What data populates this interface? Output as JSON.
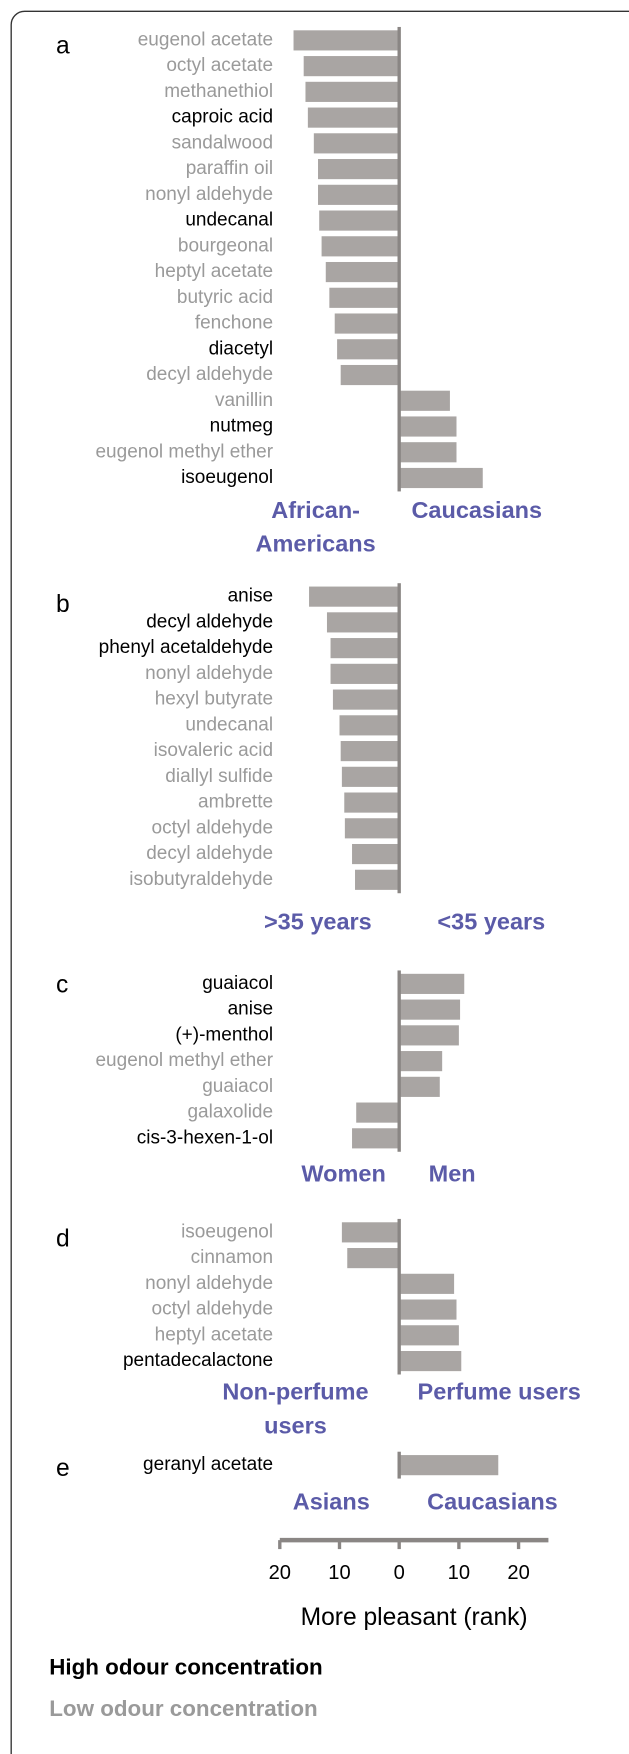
{
  "chart_data": {
    "type": "bar",
    "orientation": "horizontal",
    "xlabel": "More pleasant (rank)",
    "xlim": [
      -20,
      25
    ],
    "xticks": [
      {
        "value": -20,
        "label": "20"
      },
      {
        "value": -10,
        "label": "10"
      },
      0,
      10,
      20
    ],
    "bar_color": "#a9a5a3",
    "legend": [
      {
        "name": "High odour concentration",
        "color": "#000000"
      },
      {
        "name": "Low odour concentration",
        "color": "#9a9a9a"
      }
    ],
    "panels": [
      {
        "letter": "a",
        "left_label": [
          "African-",
          "Americans"
        ],
        "right_label": [
          "Caucasians"
        ],
        "categories": [
          "eugenol acetate",
          "octyl acetate",
          "methanethiol",
          "caproic acid",
          "sandalwood",
          "paraffin oil",
          "nonyl aldehyde",
          "undecanal",
          "bourgeonal",
          "heptyl acetate",
          "butyric acid",
          "fenchone",
          "diacetyl",
          "decyl aldehyde",
          "vanillin",
          "nutmeg",
          "eugenol methyl ether",
          "isoeugenol"
        ],
        "values": [
          -17.7,
          -16,
          -15.7,
          -15.3,
          -14.3,
          -13.6,
          -13.6,
          -13.4,
          -13,
          -12.3,
          -11.7,
          -10.8,
          -10.4,
          -9.8,
          8.5,
          9.6,
          9.6,
          14
        ],
        "label_colors": [
          "#9a9a9a",
          "#9a9a9a",
          "#9a9a9a",
          "#000000",
          "#9a9a9a",
          "#9a9a9a",
          "#9a9a9a",
          "#000000",
          "#9a9a9a",
          "#9a9a9a",
          "#9a9a9a",
          "#9a9a9a",
          "#000000",
          "#9a9a9a",
          "#9a9a9a",
          "#000000",
          "#9a9a9a",
          "#000000"
        ]
      },
      {
        "letter": "b",
        "left_label": [
          ">35 years"
        ],
        "right_label": [
          "<35 years"
        ],
        "categories": [
          "anise",
          "decyl aldehyde",
          "phenyl acetaldehyde",
          "nonyl aldehyde",
          "hexyl butyrate",
          "undecanal",
          "isovaleric acid",
          "diallyl sulfide",
          "ambrette",
          "octyl aldehyde",
          "decyl aldehyde",
          "isobutyraldehyde"
        ],
        "values": [
          -15.1,
          -12.1,
          -11.5,
          -11.5,
          -11.1,
          -10,
          -9.8,
          -9.6,
          -9.2,
          -9.1,
          -7.9,
          -7.4
        ],
        "label_colors": [
          "#000000",
          "#000000",
          "#000000",
          "#9a9a9a",
          "#9a9a9a",
          "#9a9a9a",
          "#9a9a9a",
          "#9a9a9a",
          "#9a9a9a",
          "#9a9a9a",
          "#9a9a9a",
          "#9a9a9a"
        ]
      },
      {
        "letter": "c",
        "left_label": [
          "Women"
        ],
        "right_label": [
          "Men"
        ],
        "categories": [
          "guaiacol",
          "anise",
          "(+)-menthol",
          "eugenol methyl ether",
          "guaiacol",
          "galaxolide",
          "cis-3-hexen-1-ol"
        ],
        "values": [
          10.9,
          10.2,
          10,
          7.2,
          6.8,
          -7.2,
          -7.9
        ],
        "label_colors": [
          "#000000",
          "#000000",
          "#000000",
          "#9a9a9a",
          "#9a9a9a",
          "#9a9a9a",
          "#000000"
        ]
      },
      {
        "letter": "d",
        "left_label": [
          "Non-perfume",
          "users"
        ],
        "right_label": [
          "Perfume users"
        ],
        "categories": [
          "isoeugenol",
          "cinnamon",
          "nonyl aldehyde",
          "octyl aldehyde",
          "heptyl acetate",
          "pentadecalactone"
        ],
        "values": [
          -9.6,
          -8.7,
          9.2,
          9.6,
          10,
          10.4
        ],
        "label_colors": [
          "#9a9a9a",
          "#9a9a9a",
          "#9a9a9a",
          "#9a9a9a",
          "#9a9a9a",
          "#000000"
        ]
      },
      {
        "letter": "e",
        "left_label": [
          "Asians"
        ],
        "right_label": [
          "Caucasians"
        ],
        "categories": [
          "geranyl acetate"
        ],
        "values": [
          16.6
        ],
        "label_colors": [
          "#000000"
        ]
      }
    ]
  }
}
